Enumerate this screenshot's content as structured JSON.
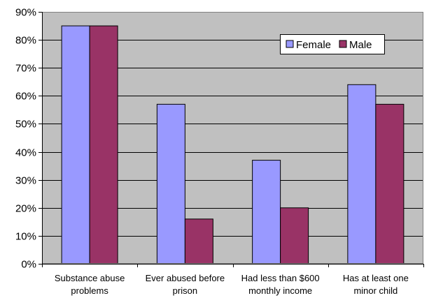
{
  "chart_data": {
    "type": "bar",
    "title": "",
    "xlabel": "",
    "ylabel": "",
    "categories": [
      [
        "Substance abuse",
        "problems"
      ],
      [
        "Ever abused before",
        "prison"
      ],
      [
        "Had less than $600",
        "monthly income"
      ],
      [
        "Has at least one",
        "minor child"
      ]
    ],
    "series": [
      {
        "name": "Female",
        "values": [
          85,
          57,
          37,
          64
        ],
        "color": "#9999ff"
      },
      {
        "name": "Male",
        "values": [
          85,
          16,
          20,
          57
        ],
        "color": "#993366"
      }
    ],
    "ylim": [
      0,
      90
    ],
    "yticks": [
      0,
      10,
      20,
      30,
      40,
      50,
      60,
      70,
      80,
      90
    ],
    "ytick_labels": [
      "0%",
      "10%",
      "20%",
      "30%",
      "40%",
      "50%",
      "60%",
      "70%",
      "80%",
      "90%"
    ],
    "grid": true,
    "plot_background": "#c0c0c0",
    "legend_position": "top-right"
  }
}
